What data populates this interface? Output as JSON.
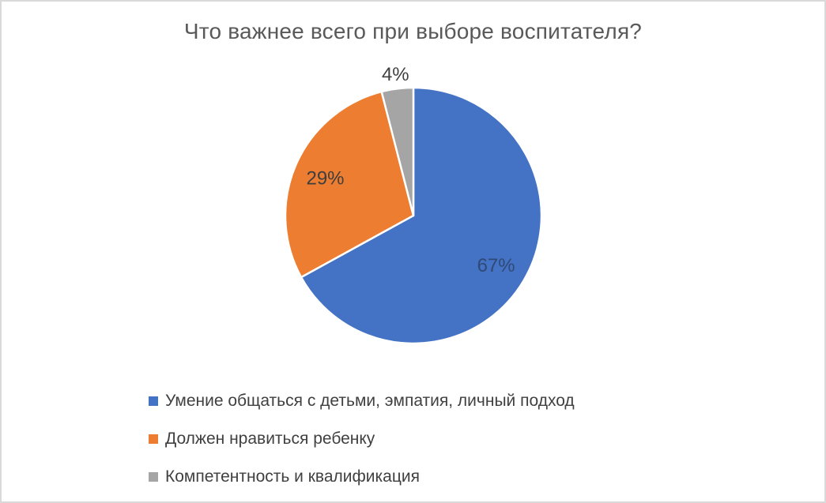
{
  "chart_data": {
    "type": "pie",
    "title": "Что важнее всего при выборе воспитателя?",
    "slices": [
      {
        "label": "Умение общаться с детьми, эмпатия, личный подход",
        "value": 67,
        "data_label": "67%",
        "color": "#4472C4",
        "label_color": "#2F4A77",
        "label_placement": "inside"
      },
      {
        "label": "Должен нравиться ребенку",
        "value": 29,
        "data_label": "29%",
        "color": "#ED7D31",
        "label_color": "#3E3E3E",
        "label_placement": "inside"
      },
      {
        "label": "Компетентность и квалификация",
        "value": 4,
        "data_label": "4%",
        "color": "#A5A5A5",
        "label_color": "#404040",
        "label_placement": "outside"
      }
    ],
    "start_angle_deg": 0,
    "direction": "clockwise",
    "slice_border_color": "#FFFFFF",
    "legend_position": "bottom-left",
    "title_color": "#595959",
    "legend_text_color": "#404040",
    "background_color": "#FFFFFF",
    "frame_border_color": "#D9D9D9"
  }
}
